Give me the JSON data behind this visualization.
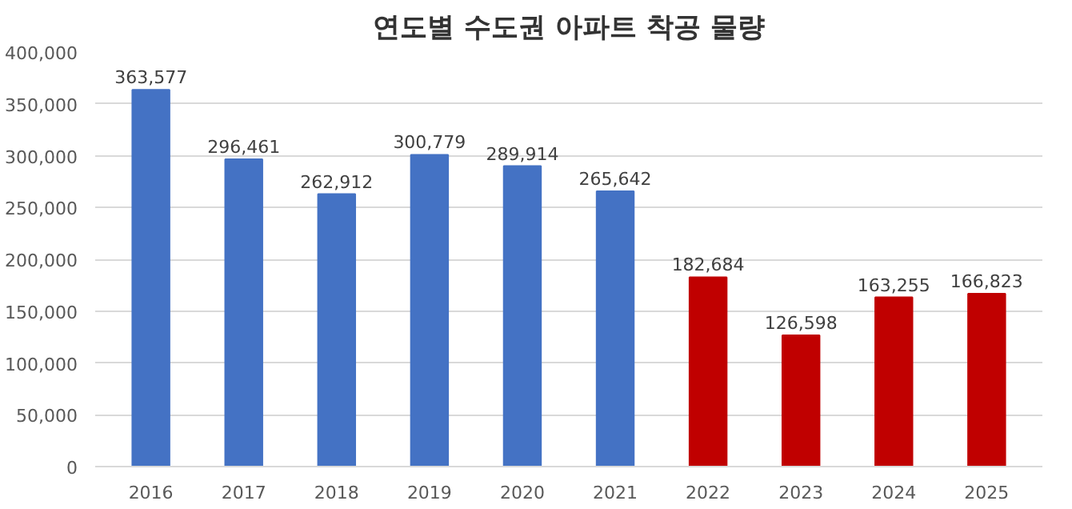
{
  "chart_data": {
    "type": "bar",
    "title": "연도별 수도권 아파트 착공 물량",
    "categories": [
      "2016",
      "2017",
      "2018",
      "2019",
      "2020",
      "2021",
      "2022",
      "2023",
      "2024",
      "2025"
    ],
    "values": [
      363577,
      296461,
      262912,
      300779,
      289914,
      265642,
      182684,
      126598,
      163255,
      166823
    ],
    "colors": [
      "#4472c4",
      "#4472c4",
      "#4472c4",
      "#4472c4",
      "#4472c4",
      "#4472c4",
      "#c00000",
      "#c00000",
      "#c00000",
      "#c00000"
    ],
    "ylim": [
      0,
      400000
    ],
    "yticks": [
      {
        "value": 0,
        "label": "0"
      },
      {
        "value": 50000,
        "label": "50,000"
      },
      {
        "value": 100000,
        "label": "100,000"
      },
      {
        "value": 150000,
        "label": "150,000"
      },
      {
        "value": 200000,
        "label": "200,000"
      },
      {
        "value": 250000,
        "label": "250,000"
      },
      {
        "value": 300000,
        "label": "300,000"
      },
      {
        "value": 350000,
        "label": "350,000"
      },
      {
        "value": 400000,
        "label": "400,000"
      }
    ],
    "value_labels": [
      "363,577",
      "296,461",
      "262,912",
      "300,779",
      "289,914",
      "265,642",
      "182,684",
      "126,598",
      "163,255",
      "166,823"
    ],
    "grid": "y"
  }
}
